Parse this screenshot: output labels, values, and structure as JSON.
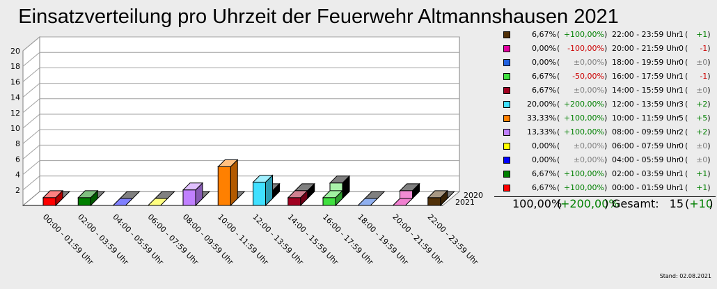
{
  "title": "Einsatzverteilung pro Uhrzeit der Feuerwehr Altmannshausen 2021",
  "stand": "Stand: 02.08.2021",
  "chart_data": {
    "type": "bar",
    "title": "Einsatzverteilung pro Uhrzeit der Feuerwehr Altmannshausen 2021",
    "categories": [
      "00:00 - 01:59 Uhr",
      "02:00 - 03:59 Uhr",
      "04:00 - 05:59 Uhr",
      "06:00 - 07:59 Uhr",
      "08:00 - 09:59 Uhr",
      "10:00 - 11:59 Uhr",
      "12:00 - 13:59 Uhr",
      "14:00 - 15:59 Uhr",
      "16:00 - 17:59 Uhr",
      "18:00 - 19:59 Uhr",
      "20:00 - 21:59 Uhr",
      "22:00 - 23:59 Uhr"
    ],
    "colors": [
      "#ff0000",
      "#008000",
      "#0000ff",
      "#ffff00",
      "#c080ff",
      "#ff8000",
      "#40e0ff",
      "#a00020",
      "#40e040",
      "#2060e0",
      "#e000a0",
      "#503008"
    ],
    "series": [
      {
        "name": "2021",
        "values": [
          1,
          1,
          0,
          0,
          2,
          5,
          3,
          1,
          1,
          0,
          0,
          1
        ]
      },
      {
        "name": "2020",
        "values": [
          0,
          0,
          0,
          0,
          0,
          0,
          1,
          1,
          2,
          0,
          1,
          0
        ]
      }
    ],
    "y_ticks": [
      2,
      4,
      6,
      8,
      10,
      12,
      14,
      16,
      18,
      20
    ],
    "ylim": [
      0,
      20
    ],
    "grid": true,
    "legend_position": "right"
  },
  "legend": [
    {
      "color": "#503008",
      "pct": "6,67%",
      "change": "+100,00%",
      "change_class": "pos",
      "range": "22:00 - 23:59 Uhr",
      "count": "1",
      "delta": "+1",
      "delta_class": "pos"
    },
    {
      "color": "#e000a0",
      "pct": "0,00%",
      "change": "-100,00%",
      "change_class": "neg",
      "range": "20:00 - 21:59 Uhr",
      "count": "0",
      "delta": "-1",
      "delta_class": "neg"
    },
    {
      "color": "#2060e0",
      "pct": "0,00%",
      "change": "±0,00%",
      "change_class": "zero",
      "range": "18:00 - 19:59 Uhr",
      "count": "0",
      "delta": "±0",
      "delta_class": "zero"
    },
    {
      "color": "#40e040",
      "pct": "6,67%",
      "change": "-50,00%",
      "change_class": "neg",
      "range": "16:00 - 17:59 Uhr",
      "count": "1",
      "delta": "-1",
      "delta_class": "neg"
    },
    {
      "color": "#a00020",
      "pct": "6,67%",
      "change": "±0,00%",
      "change_class": "zero",
      "range": "14:00 - 15:59 Uhr",
      "count": "1",
      "delta": "±0",
      "delta_class": "zero"
    },
    {
      "color": "#40e0ff",
      "pct": "20,00%",
      "change": "+200,00%",
      "change_class": "pos",
      "range": "12:00 - 13:59 Uhr",
      "count": "3",
      "delta": "+2",
      "delta_class": "pos"
    },
    {
      "color": "#ff8000",
      "pct": "33,33%",
      "change": "+100,00%",
      "change_class": "pos",
      "range": "10:00 - 11:59 Uhr",
      "count": "5",
      "delta": "+5",
      "delta_class": "pos"
    },
    {
      "color": "#c080ff",
      "pct": "13,33%",
      "change": "+100,00%",
      "change_class": "pos",
      "range": "08:00 - 09:59 Uhr",
      "count": "2",
      "delta": "+2",
      "delta_class": "pos"
    },
    {
      "color": "#ffff00",
      "pct": "0,00%",
      "change": "±0,00%",
      "change_class": "zero",
      "range": "06:00 - 07:59 Uhr",
      "count": "0",
      "delta": "±0",
      "delta_class": "zero"
    },
    {
      "color": "#0000ff",
      "pct": "0,00%",
      "change": "±0,00%",
      "change_class": "zero",
      "range": "04:00 - 05:59 Uhr",
      "count": "0",
      "delta": "±0",
      "delta_class": "zero"
    },
    {
      "color": "#008000",
      "pct": "6,67%",
      "change": "+100,00%",
      "change_class": "pos",
      "range": "02:00 - 03:59 Uhr",
      "count": "1",
      "delta": "+1",
      "delta_class": "pos"
    },
    {
      "color": "#ff0000",
      "pct": "6,67%",
      "change": "+100,00%",
      "change_class": "pos",
      "range": "00:00 - 01:59 Uhr",
      "count": "1",
      "delta": "+1",
      "delta_class": "pos"
    }
  ],
  "total": {
    "pct": "100,00%",
    "change": "+200,00%",
    "change_class": "pos",
    "label": "Gesamt:",
    "count": "15",
    "delta": "+10",
    "delta_class": "pos"
  }
}
